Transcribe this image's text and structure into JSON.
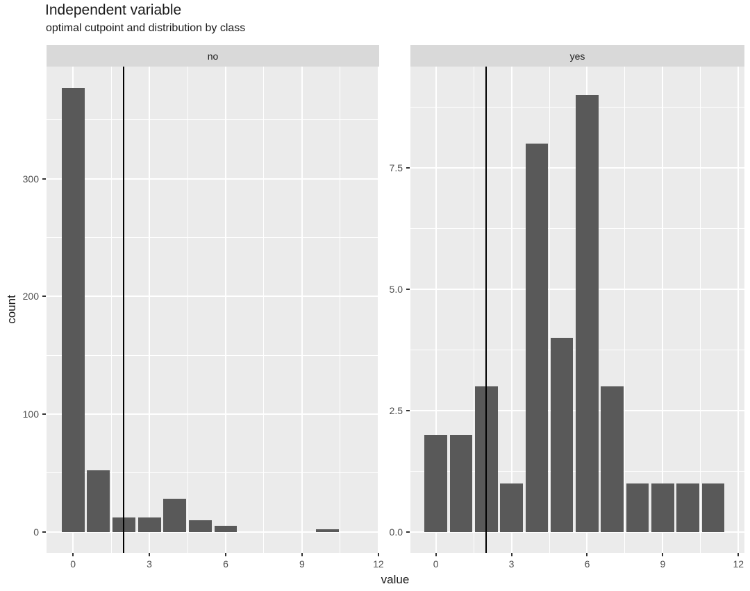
{
  "chart_data": {
    "type": "bar",
    "chart_kind": "faceted-histogram",
    "title": "Independent variable",
    "subtitle": "optimal cutpoint and distribution by class",
    "xlabel": "value",
    "ylabel": "count",
    "cutpoint": 2,
    "bar_width": 0.9,
    "legend": "none",
    "grid": "on",
    "colors": {
      "bar_fill": "#595959",
      "panel_background": "#ebebeb",
      "strip_background": "#d9d9d9",
      "gridline": "#ffffff",
      "cutpoint_line": "#000000",
      "tick_text": "#4d4d4d",
      "title_text": "#1a1a1a",
      "tick_mark": "#333333"
    },
    "facets": [
      {
        "label": "no",
        "bins": [
          0,
          1,
          2,
          3,
          4,
          5,
          6,
          7,
          8,
          9,
          10,
          11
        ],
        "counts": [
          377,
          52,
          12,
          12,
          28,
          10,
          5,
          0,
          0,
          0,
          2,
          0
        ],
        "xlim": [
          -1.04,
          12.03
        ],
        "ylim": [
          -17.9,
          395.2
        ],
        "x_ticks": {
          "values": [
            0,
            3,
            6,
            9,
            12
          ],
          "labels": [
            "0",
            "3",
            "6",
            "9",
            "12"
          ],
          "minor": [
            1.5,
            4.5,
            7.5,
            10.5
          ]
        },
        "y_ticks": {
          "values": [
            0,
            100,
            200,
            300
          ],
          "labels": [
            "0",
            "100",
            "200",
            "300"
          ],
          "minor": [
            50,
            150,
            250,
            350
          ]
        }
      },
      {
        "label": "yes",
        "bins": [
          0,
          1,
          2,
          3,
          4,
          5,
          6,
          7,
          8,
          9,
          10,
          11
        ],
        "counts": [
          2,
          2,
          3,
          1,
          8,
          4,
          9,
          3,
          1,
          1,
          1,
          1
        ],
        "xlim": [
          -1.01,
          12.24
        ],
        "ylim": [
          -0.43,
          9.58
        ],
        "x_ticks": {
          "values": [
            0,
            3,
            6,
            9,
            12
          ],
          "labels": [
            "0",
            "3",
            "6",
            "9",
            "12"
          ],
          "minor": [
            1.5,
            4.5,
            7.5,
            10.5
          ]
        },
        "y_ticks": {
          "values": [
            0,
            2.5,
            5,
            7.5
          ],
          "labels": [
            "0.0",
            "2.5",
            "5.0",
            "7.5"
          ],
          "minor": [
            1.25,
            3.75,
            6.25,
            8.75
          ]
        }
      }
    ]
  }
}
